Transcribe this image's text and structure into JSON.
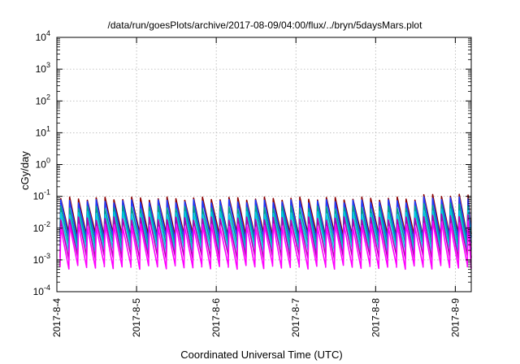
{
  "chart_data": {
    "type": "line",
    "title": "/data/run/goesPlots/archive/2017-08-09/04:00/flux/../bryn/5daysMars.plot",
    "xlabel": "Coordinated Universal Time (UTC)",
    "ylabel": "cGy/day",
    "yscale": "log",
    "ylim": [
      0.0001,
      10000
    ],
    "xlim_days": [
      0,
      5.2
    ],
    "x_ticks": [
      {
        "label": "2017-8-4",
        "day": 0
      },
      {
        "label": "2017-8-5",
        "day": 1
      },
      {
        "label": "2017-8-6",
        "day": 2
      },
      {
        "label": "2017-8-7",
        "day": 3
      },
      {
        "label": "2017-8-8",
        "day": 4
      },
      {
        "label": "2017-8-9",
        "day": 5
      }
    ],
    "y_ticks": [
      {
        "base": "10",
        "exp": "-4",
        "value": 0.0001
      },
      {
        "base": "10",
        "exp": "-3",
        "value": 0.001
      },
      {
        "base": "10",
        "exp": "-2",
        "value": 0.01
      },
      {
        "base": "10",
        "exp": "-1",
        "value": 0.1
      },
      {
        "base": "10",
        "exp": "0",
        "value": 1
      },
      {
        "base": "10",
        "exp": "1",
        "value": 10
      },
      {
        "base": "10",
        "exp": "2",
        "value": 100
      },
      {
        "base": "10",
        "exp": "3",
        "value": 1000
      },
      {
        "base": "10",
        "exp": "4",
        "value": 10000
      }
    ],
    "grid": true,
    "pattern": {
      "teeth_per_day": 9,
      "x_start_day": 0.04,
      "x_end_day": 5.2
    },
    "series": [
      {
        "color": "#8b0000",
        "peak": 0.085,
        "trough": 0.006
      },
      {
        "color": "#1e3cff",
        "peak": 0.07,
        "trough": 0.0045
      },
      {
        "color": "#00a090",
        "peak": 0.045,
        "trough": 0.003
      },
      {
        "color": "#00c8e6",
        "peak": 0.03,
        "trough": 0.002
      },
      {
        "color": "#b000b0",
        "peak": 0.02,
        "trough": 0.0012
      },
      {
        "color": "#ff00ff",
        "peak": 0.012,
        "trough": 0.0006
      }
    ]
  }
}
